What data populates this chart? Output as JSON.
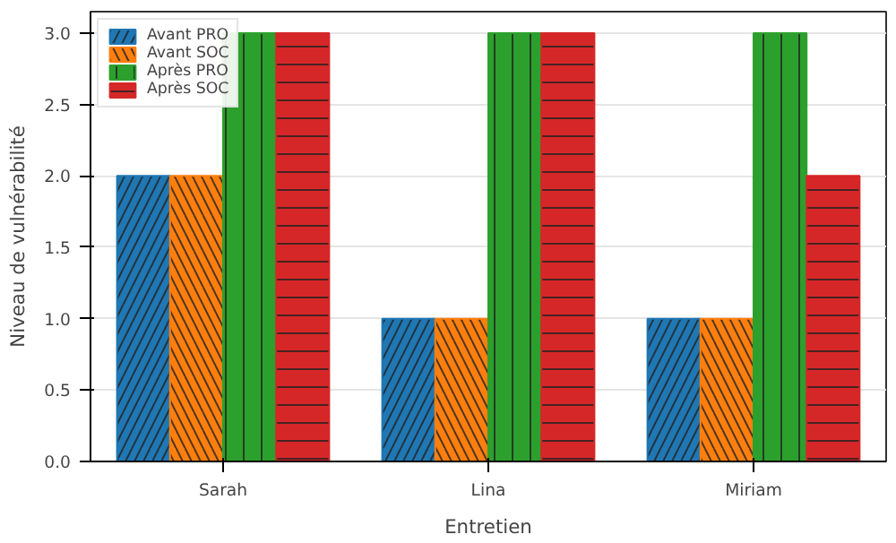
{
  "chart_data": {
    "type": "bar",
    "xlabel": "Entretien",
    "ylabel": "Niveau de vulnérabilité",
    "categories": [
      "Sarah",
      "Lina",
      "Miriam"
    ],
    "series": [
      {
        "name": "Avant PRO",
        "color": "#1f77b4",
        "values": [
          2,
          1,
          1
        ]
      },
      {
        "name": "Avant SOC",
        "color": "#ff7f0e",
        "values": [
          2,
          1,
          1
        ]
      },
      {
        "name": "Après PRO",
        "color": "#2ca02c",
        "values": [
          3,
          3,
          3
        ]
      },
      {
        "name": "Après SOC",
        "color": "#d62728",
        "values": [
          3,
          3,
          2
        ]
      }
    ],
    "ylim": [
      0,
      3.15
    ],
    "yticks": [
      {
        "value": 0,
        "label": "0.0"
      },
      0.5,
      {
        "value": 1,
        "label": "1.0"
      },
      1.5,
      {
        "value": 2,
        "label": "2.0"
      },
      2.5,
      {
        "value": 3,
        "label": "3.0"
      }
    ],
    "grid": "y",
    "legend": "top left"
  }
}
